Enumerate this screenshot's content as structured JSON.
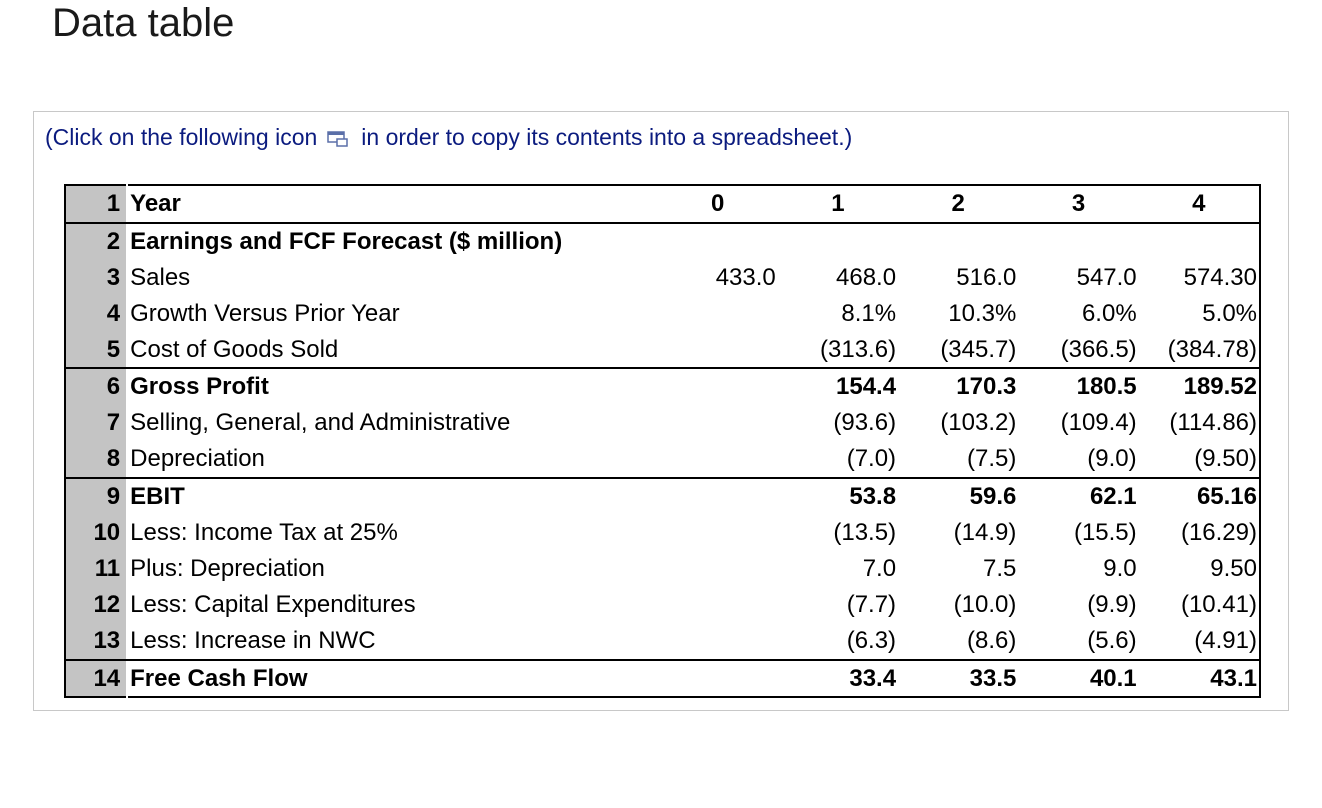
{
  "header": {
    "title": "Data table"
  },
  "instruction": {
    "before": "(Click on the following icon",
    "after": "in order to copy its contents into a spreadsheet.)"
  },
  "table": {
    "rows": [
      [
        "1",
        "Year",
        "0",
        "1",
        "2",
        "3",
        "4"
      ],
      [
        "2",
        "Earnings and FCF Forecast ($ million)",
        null,
        null,
        null,
        null,
        null
      ],
      [
        "3",
        "Sales",
        "433.0",
        "468.0",
        "516.0",
        "547.0",
        "574.30"
      ],
      [
        "4",
        "Growth Versus Prior Year",
        null,
        "8.1%",
        "10.3%",
        "6.0%",
        "5.0%"
      ],
      [
        "5",
        "Cost of Goods Sold",
        null,
        "(313.6)",
        "(345.7)",
        "(366.5)",
        "(384.78)"
      ],
      [
        "6",
        "Gross Profit",
        null,
        "154.4",
        "170.3",
        "180.5",
        "189.52"
      ],
      [
        "7",
        "Selling, General, and Administrative",
        null,
        "(93.6)",
        "(103.2)",
        "(109.4)",
        "(114.86)"
      ],
      [
        "8",
        "Depreciation",
        null,
        "(7.0)",
        "(7.5)",
        "(9.0)",
        "(9.50)"
      ],
      [
        "9",
        "EBIT",
        null,
        "53.8",
        "59.6",
        "62.1",
        "65.16"
      ],
      [
        "10",
        "Less: Income Tax at 25%",
        null,
        "(13.5)",
        "(14.9)",
        "(15.5)",
        "(16.29)"
      ],
      [
        "11",
        "Plus: Depreciation",
        null,
        "7.0",
        "7.5",
        "9.0",
        "9.50"
      ],
      [
        "12",
        "Less: Capital Expenditures",
        null,
        "(7.7)",
        "(10.0)",
        "(9.9)",
        "(10.41)"
      ],
      [
        "13",
        "Less: Increase in NWC",
        null,
        "(6.3)",
        "(8.6)",
        "(5.6)",
        "(4.91)"
      ],
      [
        "14",
        "Free Cash Flow",
        null,
        "33.4",
        "33.5",
        "40.1",
        "43.1"
      ]
    ]
  }
}
